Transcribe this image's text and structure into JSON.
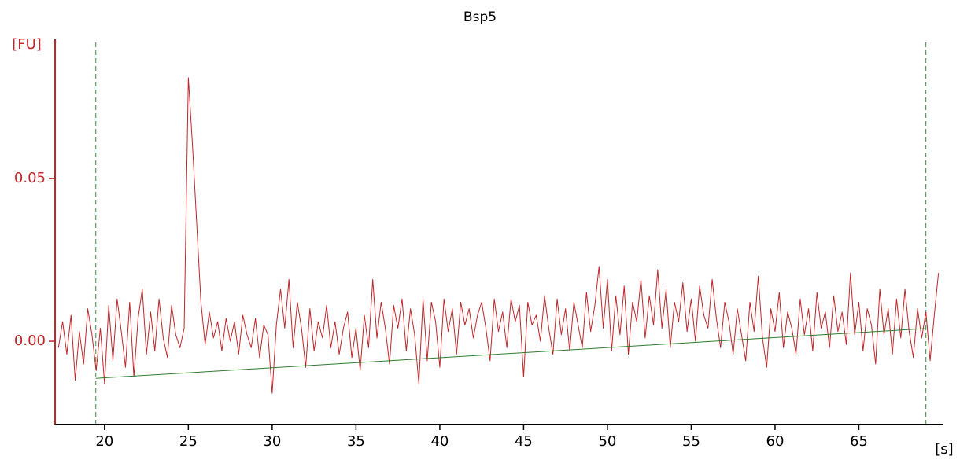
{
  "chart_data": {
    "type": "line",
    "title": "Bsp5",
    "y_label": "[FU]",
    "x_label": "[s]",
    "xlim": [
      17.05,
      70.0
    ],
    "ylim": [
      -0.0256,
      0.0928
    ],
    "xticks": [
      20,
      25,
      30,
      35,
      40,
      45,
      50,
      55,
      60,
      65
    ],
    "yticks": [
      {
        "value": 0,
        "label": "0.00"
      },
      {
        "value": 0.05,
        "label": "0.05"
      }
    ],
    "markers": [
      19.48,
      69.0
    ],
    "marker_color": "#3a8a3a",
    "series": [
      {
        "color": "#c0262a",
        "x": [
          17.25,
          17.5,
          17.75,
          18,
          18.25,
          18.5,
          18.75,
          19,
          19.25,
          19.5,
          19.75,
          20,
          20.25,
          20.5,
          20.75,
          21,
          21.25,
          21.5,
          21.75,
          22,
          22.25,
          22.5,
          22.75,
          23,
          23.25,
          23.5,
          23.75,
          24,
          24.25,
          24.5,
          24.75,
          25,
          25.25,
          25.5,
          25.75,
          26,
          26.25,
          26.5,
          26.75,
          27,
          27.25,
          27.5,
          27.75,
          28,
          28.25,
          28.5,
          28.75,
          29,
          29.25,
          29.5,
          29.75,
          30,
          30.25,
          30.5,
          30.75,
          31,
          31.25,
          31.5,
          31.75,
          32,
          32.25,
          32.5,
          32.75,
          33,
          33.25,
          33.5,
          33.75,
          34,
          34.25,
          34.5,
          34.75,
          35,
          35.25,
          35.5,
          35.75,
          36,
          36.25,
          36.5,
          36.75,
          37,
          37.25,
          37.5,
          37.75,
          38,
          38.25,
          38.5,
          38.75,
          39,
          39.25,
          39.5,
          39.75,
          40,
          40.25,
          40.5,
          40.75,
          41,
          41.25,
          41.5,
          41.75,
          42,
          42.25,
          42.5,
          42.75,
          43,
          43.25,
          43.5,
          43.75,
          44,
          44.25,
          44.5,
          44.75,
          45,
          45.25,
          45.5,
          45.75,
          46,
          46.25,
          46.5,
          46.75,
          47,
          47.25,
          47.5,
          47.75,
          48,
          48.25,
          48.5,
          48.75,
          49,
          49.25,
          49.5,
          49.75,
          50,
          50.25,
          50.5,
          50.75,
          51,
          51.25,
          51.5,
          51.75,
          52,
          52.25,
          52.5,
          52.75,
          53,
          53.25,
          53.5,
          53.75,
          54,
          54.25,
          54.5,
          54.75,
          55,
          55.25,
          55.5,
          55.75,
          56,
          56.25,
          56.5,
          56.75,
          57,
          57.25,
          57.5,
          57.75,
          58,
          58.25,
          58.5,
          58.75,
          59,
          59.25,
          59.5,
          59.75,
          60,
          60.25,
          60.5,
          60.75,
          61,
          61.25,
          61.5,
          61.75,
          62,
          62.25,
          62.5,
          62.75,
          63,
          63.25,
          63.5,
          63.75,
          64,
          64.25,
          64.5,
          64.75,
          65,
          65.25,
          65.5,
          65.75,
          66,
          66.25,
          66.5,
          66.75,
          67,
          67.25,
          67.5,
          67.75,
          68,
          68.25,
          68.5,
          68.75,
          69,
          69.25,
          69.5,
          69.75
        ],
        "values": [
          -0.002,
          0.006,
          -0.004,
          0.008,
          -0.012,
          0.003,
          -0.007,
          0.01,
          0.002,
          -0.009,
          0.004,
          -0.013,
          0.011,
          -0.006,
          0.013,
          0.003,
          -0.008,
          0.012,
          -0.011,
          0.007,
          0.016,
          -0.004,
          0.009,
          -0.003,
          0.013,
          0.001,
          -0.005,
          0.011,
          0.002,
          -0.002,
          0.004,
          0.081,
          0.06,
          0.036,
          0.012,
          -0.001,
          0.009,
          0.001,
          0.006,
          -0.003,
          0.007,
          0.0,
          0.006,
          -0.004,
          0.008,
          0.002,
          -0.002,
          0.007,
          -0.005,
          0.005,
          0.002,
          -0.016,
          0.005,
          0.016,
          0.004,
          0.019,
          -0.002,
          0.012,
          0.004,
          -0.008,
          0.01,
          -0.003,
          0.006,
          0.001,
          0.011,
          -0.002,
          0.006,
          -0.004,
          0.004,
          0.009,
          -0.005,
          0.004,
          -0.009,
          0.008,
          -0.002,
          0.019,
          0.001,
          0.012,
          0.004,
          -0.007,
          0.011,
          0.004,
          0.013,
          -0.003,
          0.01,
          0.002,
          -0.013,
          0.013,
          -0.006,
          0.012,
          0.006,
          -0.008,
          0.013,
          0.003,
          0.01,
          -0.004,
          0.012,
          0.005,
          0.01,
          0.001,
          0.008,
          0.012,
          0.004,
          -0.006,
          0.013,
          0.003,
          0.009,
          -0.002,
          0.013,
          0.006,
          0.011,
          -0.011,
          0.012,
          0.005,
          0.008,
          0.0,
          0.014,
          0.004,
          -0.004,
          0.013,
          0.002,
          0.01,
          -0.003,
          0.012,
          0.005,
          -0.002,
          0.015,
          0.003,
          0.011,
          0.023,
          0.004,
          0.019,
          -0.003,
          0.014,
          0.002,
          0.017,
          -0.004,
          0.012,
          0.006,
          0.019,
          0.001,
          0.014,
          0.005,
          0.022,
          0.004,
          0.016,
          -0.002,
          0.012,
          0.006,
          0.018,
          0.003,
          0.013,
          0.0,
          0.017,
          0.008,
          0.004,
          0.019,
          0.007,
          -0.002,
          0.012,
          0.006,
          -0.004,
          0.01,
          0.002,
          -0.006,
          0.012,
          0.003,
          0.02,
          0.001,
          -0.008,
          0.01,
          0.003,
          0.015,
          -0.002,
          0.009,
          0.004,
          -0.004,
          0.013,
          0.002,
          0.01,
          -0.003,
          0.015,
          0.004,
          0.009,
          -0.002,
          0.014,
          0.003,
          0.009,
          -0.001,
          0.021,
          0.002,
          0.012,
          -0.003,
          0.01,
          0.005,
          -0.007,
          0.016,
          0.002,
          0.01,
          -0.004,
          0.013,
          0.001,
          0.016,
          0.003,
          -0.005,
          0.01,
          0.001,
          0.009,
          -0.006,
          0.008,
          0.021
        ]
      },
      {
        "color": "#2e7d2e",
        "x": [
          19.48,
          69.0
        ],
        "values": [
          -0.0114,
          0.0039
        ]
      }
    ]
  }
}
